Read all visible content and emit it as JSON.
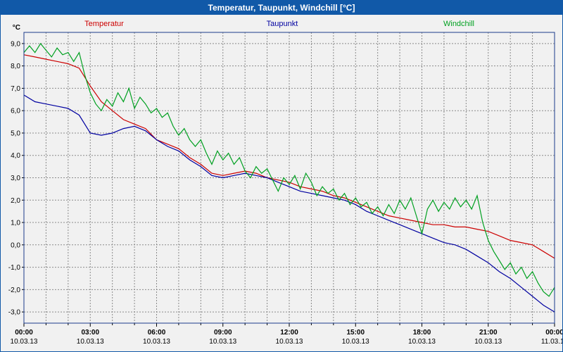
{
  "title_bar": {
    "title": "Temperatur, Taupunkt, Windchill [°C]"
  },
  "legend": {
    "items": [
      {
        "label": "Temperatur",
        "color": "#cc0000"
      },
      {
        "label": "Taupunkt",
        "color": "#0000a0"
      },
      {
        "label": "Windchill",
        "color": "#00a020"
      }
    ]
  },
  "colors": {
    "titlebar": "#1159a8",
    "plot_border": "#1a3c8c",
    "grid": "#8a8a8a",
    "background": "#f1f1f1"
  },
  "chart_data": {
    "type": "line",
    "title": "Temperatur, Taupunkt, Windchill [°C]",
    "xlabel": "",
    "ylabel": "°C",
    "xlim": [
      0,
      24
    ],
    "ylim": [
      -3.5,
      9.5
    ],
    "grid": true,
    "legend_position": "top",
    "y_ticks": [
      {
        "value": 9,
        "label": "9,0"
      },
      {
        "value": 8,
        "label": "8,0"
      },
      {
        "value": 7,
        "label": "7,0"
      },
      {
        "value": 6,
        "label": "6,0"
      },
      {
        "value": 5,
        "label": "5,0"
      },
      {
        "value": 4,
        "label": "4,0"
      },
      {
        "value": 3,
        "label": "3,0"
      },
      {
        "value": 2,
        "label": "2,0"
      },
      {
        "value": 1,
        "label": "1,0"
      },
      {
        "value": 0,
        "label": "0,0"
      },
      {
        "value": -1,
        "label": "-1,0"
      },
      {
        "value": -2,
        "label": "-2,0"
      },
      {
        "value": -3,
        "label": "-3,0"
      }
    ],
    "x_ticks": [
      {
        "hour": 0,
        "time": "00:00",
        "date": "10.03.13"
      },
      {
        "hour": 3,
        "time": "03:00",
        "date": "10.03.13"
      },
      {
        "hour": 6,
        "time": "06:00",
        "date": "10.03.13"
      },
      {
        "hour": 9,
        "time": "09:00",
        "date": "10.03.13"
      },
      {
        "hour": 12,
        "time": "12:00",
        "date": "10.03.13"
      },
      {
        "hour": 15,
        "time": "15:00",
        "date": "10.03.13"
      },
      {
        "hour": 18,
        "time": "18:00",
        "date": "10.03.13"
      },
      {
        "hour": 21,
        "time": "21:00",
        "date": "10.03.13"
      },
      {
        "hour": 24,
        "time": "00:00",
        "date": "11.03.13"
      }
    ],
    "series": [
      {
        "name": "Temperatur",
        "color": "#cc0000",
        "x_start": 0,
        "x_step": 0.5,
        "values": [
          8.5,
          8.4,
          8.3,
          8.2,
          8.1,
          7.9,
          7.1,
          6.4,
          6.0,
          5.6,
          5.4,
          5.2,
          4.7,
          4.5,
          4.3,
          3.9,
          3.6,
          3.2,
          3.1,
          3.2,
          3.3,
          3.2,
          3.0,
          2.9,
          2.8,
          2.6,
          2.5,
          2.4,
          2.2,
          2.1,
          1.9,
          1.7,
          1.5,
          1.3,
          1.2,
          1.1,
          1.0,
          0.9,
          0.9,
          0.8,
          0.8,
          0.7,
          0.6,
          0.4,
          0.2,
          0.1,
          0.0,
          -0.3,
          -0.6
        ]
      },
      {
        "name": "Taupunkt",
        "color": "#0000a0",
        "x_start": 0,
        "x_step": 0.5,
        "values": [
          6.7,
          6.4,
          6.3,
          6.2,
          6.1,
          5.8,
          5.0,
          4.9,
          5.0,
          5.2,
          5.3,
          5.1,
          4.7,
          4.4,
          4.2,
          3.8,
          3.5,
          3.1,
          3.0,
          3.1,
          3.2,
          3.1,
          3.0,
          2.8,
          2.6,
          2.4,
          2.3,
          2.2,
          2.1,
          2.0,
          1.8,
          1.5,
          1.3,
          1.1,
          0.9,
          0.7,
          0.5,
          0.3,
          0.1,
          0.0,
          -0.2,
          -0.5,
          -0.8,
          -1.2,
          -1.5,
          -1.9,
          -2.3,
          -2.7,
          -3.0
        ]
      },
      {
        "name": "Windchill",
        "color": "#00a020",
        "x_start": 0,
        "x_step": 0.25,
        "values": [
          8.6,
          8.9,
          8.6,
          9.0,
          8.7,
          8.4,
          8.8,
          8.5,
          8.6,
          8.2,
          8.6,
          7.6,
          6.8,
          6.3,
          6.0,
          6.5,
          6.2,
          6.8,
          6.4,
          7.0,
          6.1,
          6.6,
          6.3,
          5.9,
          6.1,
          5.7,
          5.9,
          5.3,
          4.9,
          5.2,
          4.7,
          4.4,
          4.7,
          4.1,
          3.6,
          4.2,
          3.8,
          4.1,
          3.6,
          3.9,
          3.3,
          3.0,
          3.5,
          3.2,
          3.4,
          2.9,
          2.4,
          3.0,
          2.7,
          3.1,
          2.5,
          3.2,
          2.8,
          2.2,
          2.6,
          2.3,
          2.5,
          2.0,
          2.3,
          1.8,
          2.1,
          1.7,
          1.9,
          1.4,
          1.7,
          1.3,
          1.8,
          1.4,
          2.0,
          1.6,
          2.1,
          1.3,
          0.5,
          1.6,
          2.0,
          1.5,
          1.9,
          1.6,
          2.1,
          1.7,
          2.0,
          1.6,
          2.2,
          1.0,
          0.2,
          -0.3,
          -0.7,
          -1.1,
          -0.8,
          -1.3,
          -1.0,
          -1.5,
          -1.2,
          -1.7,
          -2.1,
          -2.3,
          -1.9
        ]
      }
    ]
  }
}
